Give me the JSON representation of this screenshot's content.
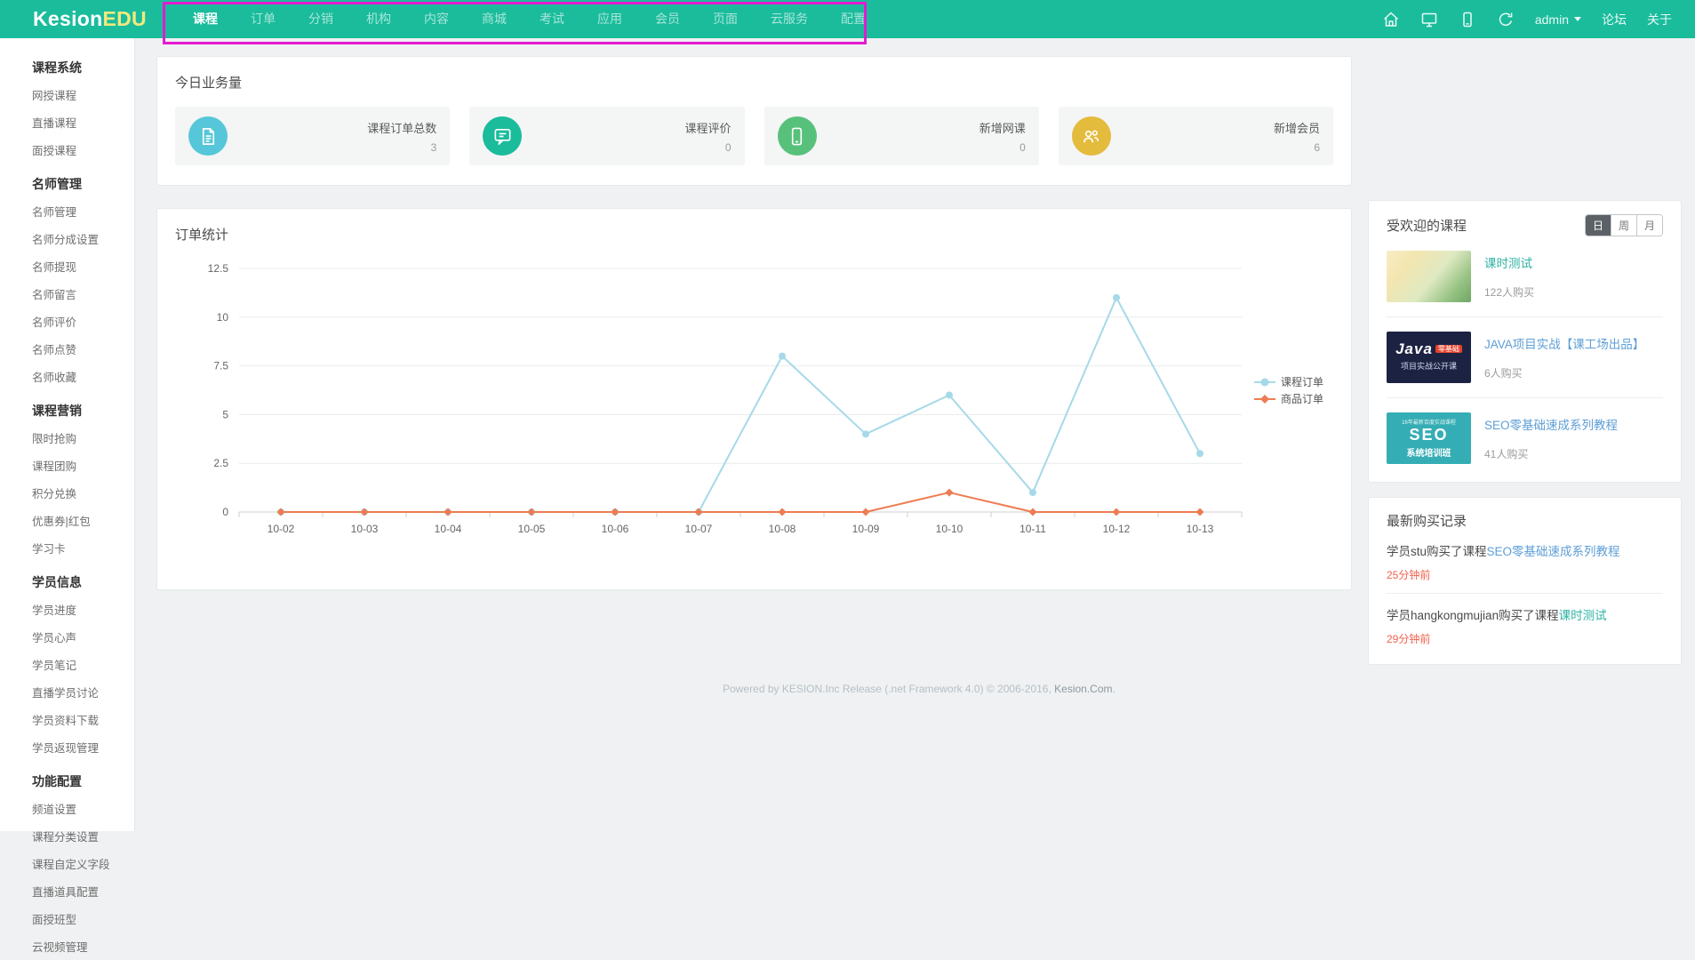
{
  "topbar": {
    "brand": {
      "primary": "Kesion",
      "accent": "EDU",
      "accent_style": "color:#f2e97e"
    },
    "nav": {
      "items": [
        {
          "label": "课程",
          "active": true
        },
        {
          "label": "订单"
        },
        {
          "label": "分销"
        },
        {
          "label": "机构"
        },
        {
          "label": "内容"
        },
        {
          "label": "商城"
        },
        {
          "label": "考试"
        },
        {
          "label": "应用"
        },
        {
          "label": "会员"
        },
        {
          "label": "页面"
        },
        {
          "label": "云服务"
        },
        {
          "label": "配置"
        }
      ]
    },
    "right": {
      "user": "admin",
      "forum": "论坛",
      "about": "关于"
    },
    "annotation_color": "#e51ad0",
    "bar_color": "#1abc9c"
  },
  "sidebar": {
    "sections": [
      {
        "heading": "课程系统",
        "items": [
          "网授课程",
          "直播课程",
          "面授课程"
        ]
      },
      {
        "heading": "名师管理",
        "items": [
          "名师管理",
          "名师分成设置",
          "名师提现",
          "名师留言",
          "名师评价",
          "名师点赞",
          "名师收藏"
        ]
      },
      {
        "heading": "课程营销",
        "items": [
          "限时抢购",
          "课程团购",
          "积分兑换",
          "优惠券|红包",
          "学习卡"
        ]
      },
      {
        "heading": "学员信息",
        "items": [
          "学员进度",
          "学员心声",
          "学员笔记",
          "直播学员讨论",
          "学员资料下载",
          "学员返现管理"
        ]
      },
      {
        "heading": "功能配置",
        "items": [
          "频道设置",
          "课程分类设置",
          "课程自定义字段",
          "直播道具配置",
          "面授班型",
          "云视频管理"
        ]
      }
    ]
  },
  "stats": {
    "title": "今日业务量",
    "cards": [
      {
        "label": "课程订单总数",
        "value": "3",
        "icon": "file-icon",
        "color": "#56c7d8",
        "style_bg": "background:#56c7d8"
      },
      {
        "label": "课程评价",
        "value": "0",
        "icon": "comment-icon",
        "color": "#1abc9c",
        "style_bg": "background:#1abc9c"
      },
      {
        "label": "新增网课",
        "value": "0",
        "icon": "mobile-icon",
        "color": "#57c17b",
        "style_bg": "background:#57c17b"
      },
      {
        "label": "新增会员",
        "value": "6",
        "icon": "users-icon",
        "color": "#e3bb3d",
        "style_bg": "background:#e3bb3d"
      }
    ]
  },
  "chart": {
    "title": "订单统计"
  },
  "chart_data": {
    "type": "line",
    "title": "订单统计",
    "categories": [
      "10-02",
      "10-03",
      "10-04",
      "10-05",
      "10-06",
      "10-07",
      "10-08",
      "10-09",
      "10-10",
      "10-11",
      "10-12",
      "10-13"
    ],
    "series": [
      {
        "name": "课程订单",
        "values": [
          0,
          0,
          0,
          0,
          0,
          0,
          8,
          4,
          6,
          1,
          11,
          3
        ],
        "color": "#a6d9e8",
        "marker": "circle"
      },
      {
        "name": "商品订单",
        "values": [
          0,
          0,
          0,
          0,
          0,
          0,
          0,
          0,
          1,
          0,
          0,
          0
        ],
        "color": "#ee7c52",
        "marker": "diamond"
      }
    ],
    "xlabel": "",
    "ylabel": "",
    "ylim": [
      0,
      12.5
    ],
    "yticks": [
      0,
      2.5,
      5,
      7.5,
      10,
      12.5
    ],
    "grid": true,
    "legend_position": "right"
  },
  "popular": {
    "title": "受欢迎的课程",
    "periods": [
      {
        "label": "日",
        "active": true
      },
      {
        "label": "周"
      },
      {
        "label": "月"
      }
    ],
    "items": [
      {
        "title": "课时测试",
        "title_style": "color:#2fb3a3",
        "buyers": "122人购买"
      },
      {
        "title": "JAVA项目实战【课工场出品】",
        "title_style": "color:#5e9ed6",
        "buyers": "6人购买",
        "cap_main": "Java",
        "cap_badge": "零基础",
        "cap_sub": "项目实战公开课"
      },
      {
        "title": "SEO零基础速成系列教程",
        "title_style": "color:#5e9ed6",
        "buyers": "41人购买",
        "cap_tiny": "16年最新百度实战课程",
        "cap_main": "SEO",
        "cap_sub": "系统培训班"
      }
    ]
  },
  "records": {
    "title": "最新购买记录",
    "items": [
      {
        "prefix": "学员stu购买了课程",
        "link": "SEO零基础速成系列教程",
        "link_style": "color:#5e9ed6",
        "time": "25分钟前"
      },
      {
        "prefix": "学员hangkongmujian购买了课程",
        "link": "课时测试",
        "link_style": "color:#2fb3a3",
        "time": "29分钟前"
      }
    ]
  },
  "footer": {
    "prefix": "Powered by KESION.Inc Release (.net Framework 4.0) © 2006-2016, ",
    "link": "Kesion.Com",
    "suffix": "."
  }
}
